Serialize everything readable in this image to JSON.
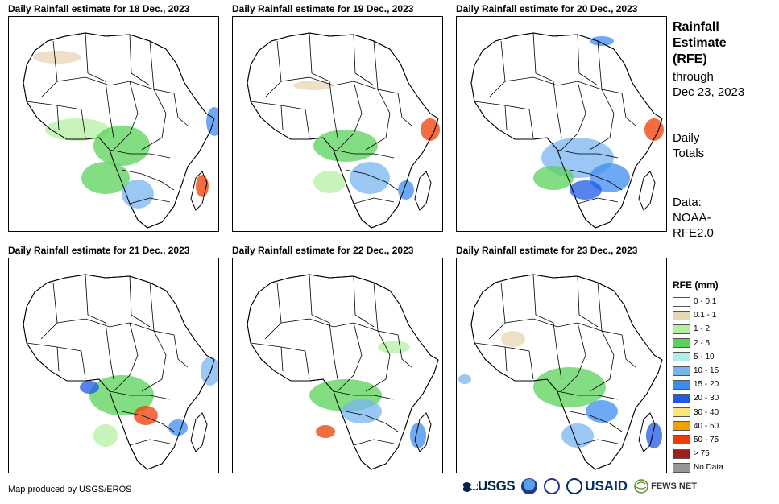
{
  "panels": [
    {
      "title": "Daily Rainfall estimate for 18 Dec., 2023"
    },
    {
      "title": "Daily Rainfall estimate for 19 Dec., 2023"
    },
    {
      "title": "Daily Rainfall estimate for 20 Dec., 2023"
    },
    {
      "title": "Daily Rainfall estimate for 21 Dec., 2023"
    },
    {
      "title": "Daily Rainfall estimate for 22 Dec., 2023"
    },
    {
      "title": "Daily Rainfall estimate for 23 Dec., 2023"
    }
  ],
  "side": {
    "title_line1": "Rainfall",
    "title_line2": "Estimate",
    "title_line3": "(RFE)",
    "through_label": "through",
    "through_date": "Dec 23, 2023",
    "totals_line1": "Daily",
    "totals_line2": "Totals",
    "data_line1": "Data:",
    "data_line2": "NOAA-",
    "data_line3": "RFE2.0"
  },
  "legend": {
    "title": "RFE (mm)",
    "items": [
      {
        "label": "0 - 0.1",
        "color": "#ffffff"
      },
      {
        "label": "0.1 - 1",
        "color": "#e8d6b4"
      },
      {
        "label": "1 - 2",
        "color": "#b4f0a0"
      },
      {
        "label": "2 - 5",
        "color": "#5ad25a"
      },
      {
        "label": "5 - 10",
        "color": "#aaf0f0"
      },
      {
        "label": "10 - 15",
        "color": "#78b4f0"
      },
      {
        "label": "15 - 20",
        "color": "#3c8cf0"
      },
      {
        "label": "20 - 30",
        "color": "#1e5ae6"
      },
      {
        "label": "30 - 40",
        "color": "#fae678"
      },
      {
        "label": "40 - 50",
        "color": "#f0a000"
      },
      {
        "label": "50 - 75",
        "color": "#f03c00"
      },
      {
        "label": "> 75",
        "color": "#a01e1e"
      },
      {
        "label": "No Data",
        "color": "#969696"
      }
    ]
  },
  "footer": {
    "credit": "Map produced by USGS/EROS",
    "logo_usgs": "USGS",
    "logo_usaid": "USAID",
    "logo_fews": "FEWS NET"
  }
}
